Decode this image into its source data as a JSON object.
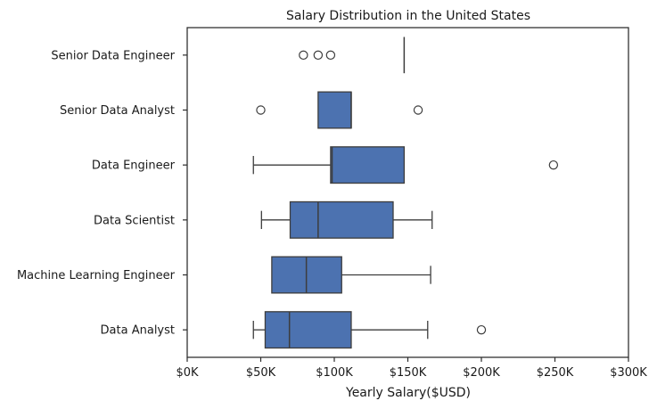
{
  "chart_data": {
    "type": "boxplot",
    "orientation": "horizontal",
    "title": "Salary Distribution in the United States",
    "xlabel": "Yearly Salary($USD)",
    "ylabel": "",
    "xlim": [
      0,
      300000
    ],
    "x_ticks": [
      {
        "value": 0,
        "label": "$0K"
      },
      {
        "value": 50000,
        "label": "$50K"
      },
      {
        "value": 100000,
        "label": "$100K"
      },
      {
        "value": 150000,
        "label": "$150K"
      },
      {
        "value": 200000,
        "label": "$200K"
      },
      {
        "value": 250000,
        "label": "$250K"
      },
      {
        "value": 300000,
        "label": "$300K"
      }
    ],
    "grid": false,
    "box_color": "#4c72b0",
    "line_color": "#3d3d3d",
    "categories": [
      {
        "name": "Senior Data Engineer",
        "whisker_low": 147500,
        "q1": 147500,
        "median": 147500,
        "q3": 147500,
        "whisker_high": 147500,
        "outliers": [
          79000,
          89000,
          97500
        ]
      },
      {
        "name": "Senior Data Analyst",
        "whisker_low": 89000,
        "q1": 89000,
        "median": 111500,
        "q3": 111500,
        "whisker_high": 111500,
        "outliers": [
          50000,
          157000
        ]
      },
      {
        "name": "Data Engineer",
        "whisker_low": 45000,
        "q1": 97500,
        "median": 98500,
        "q3": 147500,
        "whisker_high": 147500,
        "outliers": [
          249000
        ]
      },
      {
        "name": "Data Scientist",
        "whisker_low": 50500,
        "q1": 70000,
        "median": 89000,
        "q3": 140000,
        "whisker_high": 166500,
        "outliers": []
      },
      {
        "name": "Machine Learning Engineer",
        "whisker_low": 57500,
        "q1": 57500,
        "median": 81000,
        "q3": 105000,
        "whisker_high": 165500,
        "outliers": []
      },
      {
        "name": "Data Analyst",
        "whisker_low": 45000,
        "q1": 53000,
        "median": 69500,
        "q3": 111500,
        "whisker_high": 163500,
        "outliers": [
          200000
        ]
      }
    ]
  }
}
